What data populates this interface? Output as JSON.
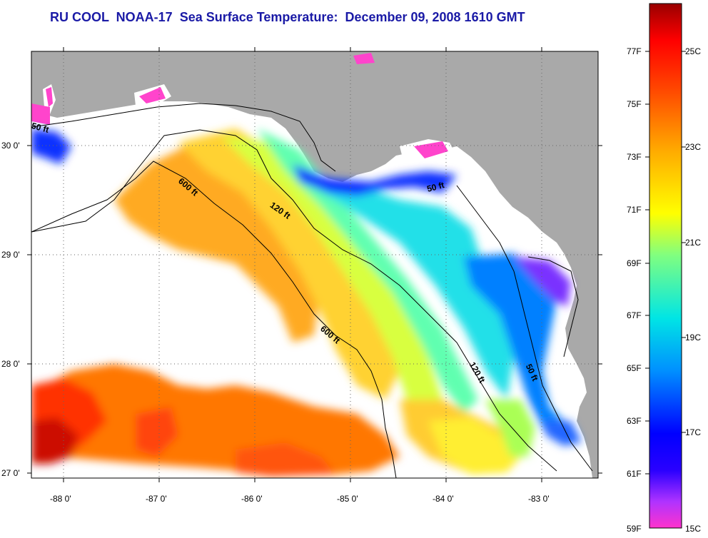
{
  "title": "RU COOL  NOAA-17  Sea Surface Temperature:  December 09, 2008 1610 GMT",
  "map": {
    "longitude_labels": [
      "-88 0'",
      "-87 0'",
      "-86 0'",
      "-85 0'",
      "-84 0'",
      "-83 0'"
    ],
    "latitude_labels": [
      "30 0'",
      "29 0'",
      "28 0'",
      "27 0'"
    ],
    "isobath_labels": [
      "50 ft",
      "120 ft",
      "600 ft",
      "600 ft",
      "50 ft",
      "120 ft",
      "50 ft"
    ],
    "colors": {
      "land": "#a9a9a9",
      "ocean_nodata": "#ffffff",
      "isobath": "#000000",
      "grid": "#555555"
    }
  },
  "colorbar": {
    "fahrenheit_labels": [
      "77F",
      "75F",
      "73F",
      "71F",
      "69F",
      "67F",
      "65F",
      "63F",
      "61F",
      "59F"
    ],
    "celsius_labels": [
      "25C",
      "23C",
      "21C",
      "19C",
      "17C",
      "15C"
    ],
    "range_celsius": [
      15,
      26.3
    ],
    "gradient_colors": [
      "#ff33cc",
      "#9933ff",
      "#0000ff",
      "#0080ff",
      "#00e5e5",
      "#80ff80",
      "#ffff00",
      "#ffaa00",
      "#ff5500",
      "#ff0000",
      "#990000"
    ]
  }
}
